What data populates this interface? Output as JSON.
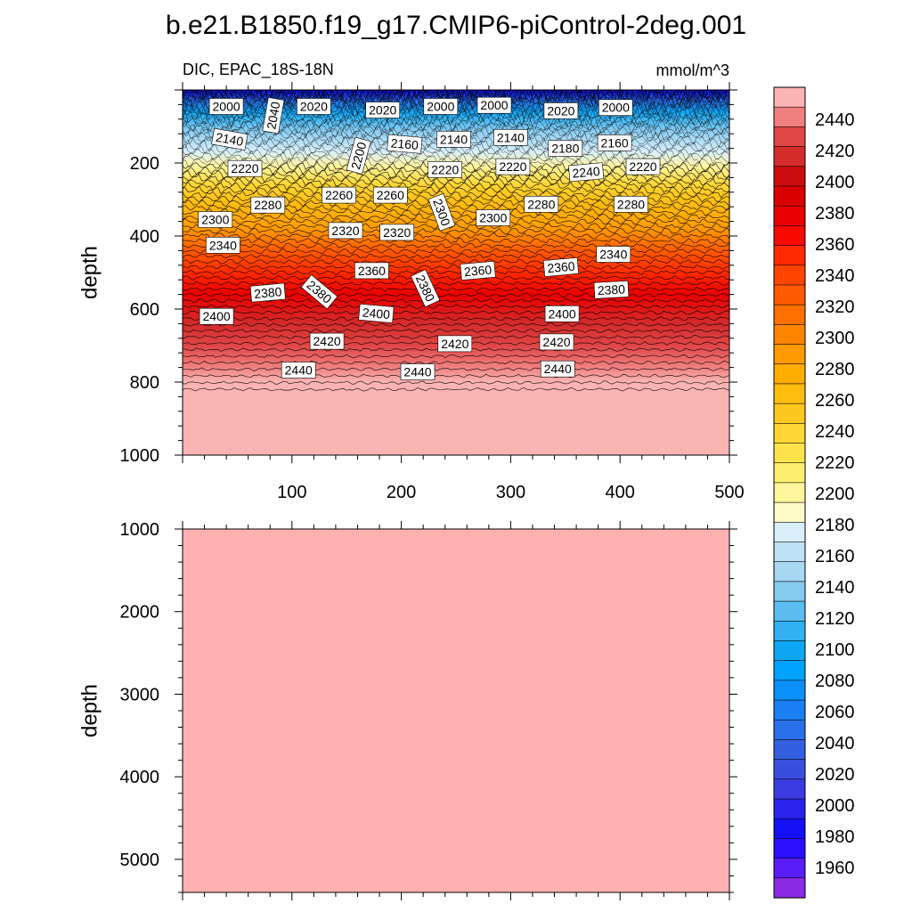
{
  "title": "b.e21.B1850.f19_g17.CMIP6-piControl-2deg.001",
  "colorbar": {
    "labels": [
      "2440",
      "2420",
      "2400",
      "2380",
      "2360",
      "2340",
      "2320",
      "2300",
      "2280",
      "2260",
      "2240",
      "2220",
      "2200",
      "2180",
      "2160",
      "2140",
      "2120",
      "2100",
      "2080",
      "2060",
      "2040",
      "2020",
      "2000",
      "1980",
      "1960"
    ],
    "colors": [
      "#fbb4b4",
      "#f08080",
      "#e04646",
      "#d42b2b",
      "#cb0d0d",
      "#da0000",
      "#ea0000",
      "#f80a00",
      "#ff2a00",
      "#ff4400",
      "#ff5a00",
      "#ff7000",
      "#ff8500",
      "#ff9a00",
      "#ffae00",
      "#ffbd10",
      "#ffc81e",
      "#ffd633",
      "#ffe34d",
      "#ffef70",
      "#fff59c",
      "#fffac8",
      "#daeffa",
      "#bfe3f6",
      "#a8d8f2",
      "#86cbf0",
      "#5cbdf0",
      "#33b0f2",
      "#0ea7f5",
      "#00a2ff",
      "#0a90f8",
      "#1a7ff2",
      "#2a6fea",
      "#3260e0",
      "#3a4ede",
      "#3a3ce2",
      "#2a22ea",
      "#1410f4",
      "#2a10ff",
      "#5a1cf6",
      "#8a2ae4"
    ]
  },
  "chart_data": [
    {
      "type": "heatmap",
      "title": "",
      "left_string": "DIC, EPAC_18S-18N",
      "right_string": "mmol/m^3",
      "ylabel": "depth",
      "xlabel": "",
      "xticks": [
        "100",
        "200",
        "300",
        "400",
        "500"
      ],
      "yticks": [
        "200",
        "400",
        "600",
        "800",
        "1000"
      ],
      "xlim": [
        0,
        500
      ],
      "ylim": [
        0,
        1000
      ],
      "y_reversed": true,
      "contour_interval": 10,
      "contour_labels": [
        {
          "text": "2000",
          "x": 40,
          "y": 45
        },
        {
          "text": "2040",
          "x": 83,
          "y": 70,
          "rot": -80
        },
        {
          "text": "2020",
          "x": 120,
          "y": 45
        },
        {
          "text": "2020",
          "x": 183,
          "y": 55
        },
        {
          "text": "2000",
          "x": 236,
          "y": 45
        },
        {
          "text": "2000",
          "x": 285,
          "y": 42
        },
        {
          "text": "2020",
          "x": 346,
          "y": 57
        },
        {
          "text": "2000",
          "x": 396,
          "y": 48
        },
        {
          "text": "2140",
          "x": 43,
          "y": 135,
          "rot": 10
        },
        {
          "text": "2160",
          "x": 203,
          "y": 148,
          "rot": 5
        },
        {
          "text": "2140",
          "x": 248,
          "y": 135
        },
        {
          "text": "2140",
          "x": 300,
          "y": 130
        },
        {
          "text": "2200",
          "x": 161,
          "y": 180,
          "rot": -75
        },
        {
          "text": "2180",
          "x": 350,
          "y": 160
        },
        {
          "text": "2160",
          "x": 395,
          "y": 145
        },
        {
          "text": "2220",
          "x": 57,
          "y": 215
        },
        {
          "text": "2220",
          "x": 240,
          "y": 218
        },
        {
          "text": "2220",
          "x": 302,
          "y": 210
        },
        {
          "text": "2240",
          "x": 369,
          "y": 225,
          "rot": -5
        },
        {
          "text": "2220",
          "x": 421,
          "y": 210
        },
        {
          "text": "2280",
          "x": 78,
          "y": 315
        },
        {
          "text": "2260",
          "x": 143,
          "y": 288
        },
        {
          "text": "2260",
          "x": 190,
          "y": 288
        },
        {
          "text": "2300",
          "x": 237,
          "y": 335,
          "rot": 70
        },
        {
          "text": "2280",
          "x": 328,
          "y": 313
        },
        {
          "text": "2280",
          "x": 410,
          "y": 313
        },
        {
          "text": "2300",
          "x": 30,
          "y": 355
        },
        {
          "text": "2320",
          "x": 149,
          "y": 385
        },
        {
          "text": "2320",
          "x": 196,
          "y": 390
        },
        {
          "text": "2300",
          "x": 284,
          "y": 350
        },
        {
          "text": "2340",
          "x": 37,
          "y": 425
        },
        {
          "text": "2360",
          "x": 173,
          "y": 495
        },
        {
          "text": "2360",
          "x": 270,
          "y": 495,
          "rot": -5
        },
        {
          "text": "2360",
          "x": 346,
          "y": 485,
          "rot": -5
        },
        {
          "text": "2340",
          "x": 394,
          "y": 450
        },
        {
          "text": "2380",
          "x": 78,
          "y": 555,
          "rot": -5
        },
        {
          "text": "2380",
          "x": 125,
          "y": 553,
          "rot": 40
        },
        {
          "text": "2380",
          "x": 222,
          "y": 543,
          "rot": 65
        },
        {
          "text": "2380",
          "x": 392,
          "y": 547,
          "rot": -3
        },
        {
          "text": "2400",
          "x": 31,
          "y": 620
        },
        {
          "text": "2400",
          "x": 177,
          "y": 612,
          "rot": 5
        },
        {
          "text": "2400",
          "x": 347,
          "y": 613
        },
        {
          "text": "2420",
          "x": 132,
          "y": 688
        },
        {
          "text": "2420",
          "x": 249,
          "y": 695
        },
        {
          "text": "2420",
          "x": 342,
          "y": 690
        },
        {
          "text": "2440",
          "x": 106,
          "y": 767
        },
        {
          "text": "2440",
          "x": 215,
          "y": 772
        },
        {
          "text": "2440",
          "x": 343,
          "y": 764
        }
      ]
    },
    {
      "type": "heatmap",
      "title": "",
      "ylabel": "depth",
      "xlabel": "",
      "xlim": [
        0,
        500
      ],
      "ylim": [
        1000,
        5400
      ],
      "yticks": [
        "1000",
        "2000",
        "3000",
        "4000",
        "5000"
      ],
      "y_reversed": true,
      "fill_value": "2440+"
    }
  ]
}
